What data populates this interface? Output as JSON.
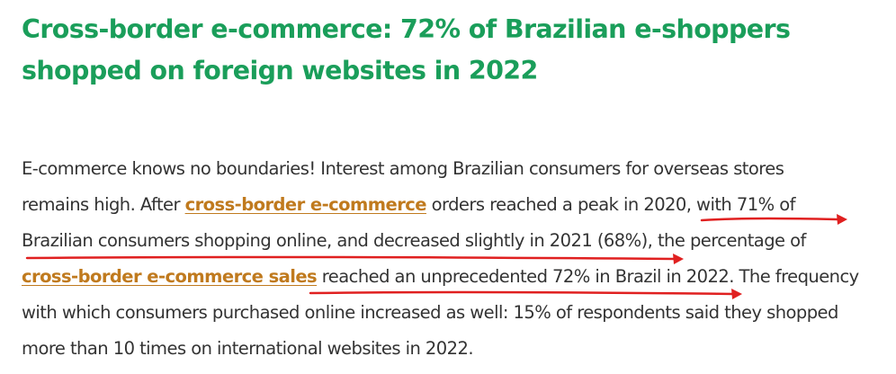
{
  "article": {
    "headline_line1": "Cross-border e-commerce: 72% of Brazilian e-shoppers",
    "headline_line2": "shopped on foreign websites in 2022",
    "paragraph": {
      "l1": "E-commerce knows no boundaries! Interest among Brazilian consumers for overseas stores",
      "l2_a": "remains high. After ",
      "link1": "cross-border e-commerce",
      "l2_b": " orders reached a peak in 2020, with 71% of",
      "l3": "Brazilian consumers shopping online, and decreased slightly in 2021 (68%), the percentage of",
      "link2": "cross-border e-commerce sales",
      "l4_b": " reached an unprecedented 72% in Brazil in 2022. The frequency",
      "l5": "with which consumers purchased online increased as well: 15% of respondents said they shopped",
      "l6": "more than 10 times on international websites in 2022."
    }
  },
  "colors": {
    "headline": "#1a9e5a",
    "body_text": "#333333",
    "link": "#c07a1e",
    "annotation_arrow": "#e02020"
  }
}
